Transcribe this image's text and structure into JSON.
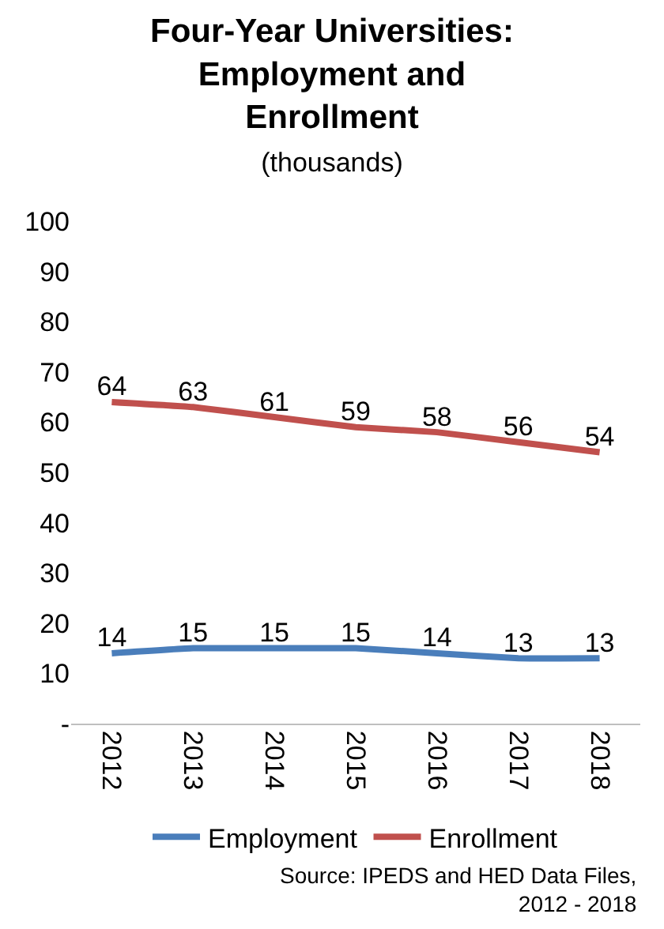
{
  "chart_data": {
    "type": "line",
    "title": "Four-Year Universities:\nEmployment and\nEnrollment",
    "subtitle": "(thousands)",
    "categories": [
      "2012",
      "2013",
      "2014",
      "2015",
      "2016",
      "2017",
      "2018"
    ],
    "series": [
      {
        "name": "Employment",
        "color": "#4a7ebb",
        "values": [
          14,
          15,
          15,
          15,
          14,
          13,
          13
        ]
      },
      {
        "name": "Enrollment",
        "color": "#c0504d",
        "values": [
          64,
          63,
          61,
          59,
          58,
          56,
          54
        ]
      }
    ],
    "ylim": [
      0,
      100
    ],
    "yticks": [
      {
        "value": 0,
        "label": "-"
      },
      10,
      20,
      30,
      40,
      50,
      60,
      70,
      80,
      90,
      100
    ],
    "data_labels": true,
    "legend": "bottom",
    "marker": "none",
    "line_style": "solid",
    "annotations": [
      "Source: IPEDS and HED Data Files,\n2012 - 2018"
    ]
  }
}
